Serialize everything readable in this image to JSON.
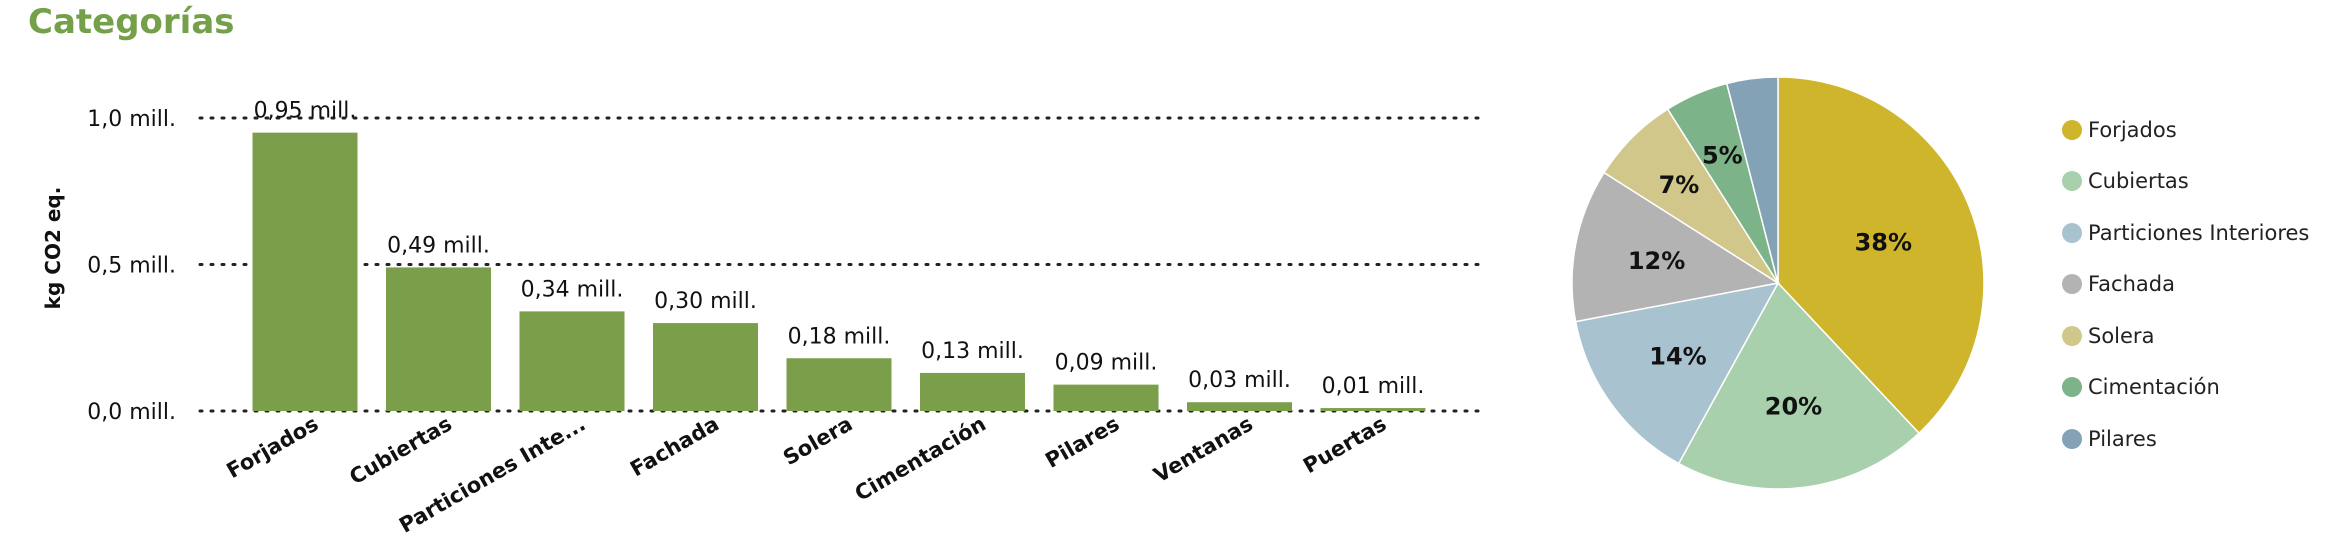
{
  "title": "Categorías",
  "chart_data": [
    {
      "type": "bar",
      "ylabel": "kg CO2 eq.",
      "categories": [
        "Forjados",
        "Cubiertas",
        "Particiones Inte...",
        "Fachada",
        "Solera",
        "Cimentación",
        "Pilares",
        "Ventanas",
        "Puertas"
      ],
      "values": [
        0.95,
        0.49,
        0.34,
        0.3,
        0.18,
        0.13,
        0.09,
        0.03,
        0.01
      ],
      "data_labels": [
        "0,95 mill.",
        "0,49 mill.",
        "0,34 mill.",
        "0,30 mill.",
        "0,18 mill.",
        "0,13 mill.",
        "0,09 mill.",
        "0,03 mill.",
        "0,01 mill."
      ],
      "ylim": [
        0,
        1.0
      ],
      "yticks": [
        0,
        0.5,
        1.0
      ],
      "ytick_labels": [
        "0,0 mill.",
        "0,5 mill.",
        "1,0 mill."
      ],
      "grid": "dotted horizontal",
      "color": "#7a9e4a"
    },
    {
      "type": "pie",
      "slices": [
        {
          "label": "Forjados",
          "value": 38,
          "text": "38%",
          "color": "#cfb52b"
        },
        {
          "label": "Cubiertas",
          "value": 20,
          "text": "20%",
          "color": "#a9d0ad"
        },
        {
          "label": "Particiones Interiores",
          "value": 14,
          "text": "14%",
          "color": "#a9c2cf"
        },
        {
          "label": "Fachada",
          "value": 12,
          "text": "12%",
          "color": "#b3b3b3"
        },
        {
          "label": "Solera",
          "value": 7,
          "text": "7%",
          "color": "#d1c78b"
        },
        {
          "label": "Cimentación",
          "value": 5,
          "text": "5%",
          "color": "#7db389"
        },
        {
          "label": "Pilares",
          "value": 4,
          "text": "",
          "color": "#84a2b5"
        }
      ],
      "legend_position": "right"
    }
  ]
}
